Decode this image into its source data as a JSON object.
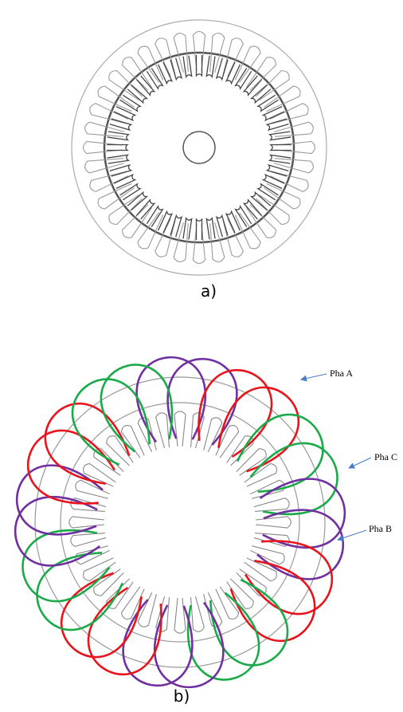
{
  "figure_a": {
    "caption": "a)"
  },
  "figure_b": {
    "caption": "b)",
    "labels": [
      "Pha A",
      "Pha C",
      "Pha B"
    ]
  }
}
